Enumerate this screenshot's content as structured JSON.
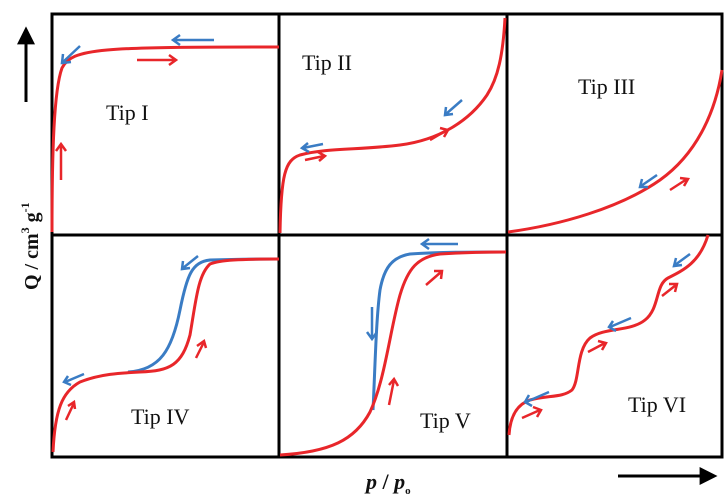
{
  "panels": [
    {
      "id": "tip1",
      "label": "Tip I"
    },
    {
      "id": "tip2",
      "label": "Tip II"
    },
    {
      "id": "tip3",
      "label": "Tip III"
    },
    {
      "id": "tip4",
      "label": "Tip IV"
    },
    {
      "id": "tip5",
      "label": "Tip V"
    },
    {
      "id": "tip6",
      "label": "Tip VI"
    }
  ],
  "axes": {
    "y_label_main": "Q / cm",
    "y_label_sup1": "3",
    "y_label_g": " g",
    "y_label_sup2": "-1",
    "x_label_p": "p",
    "x_label_slash": " / ",
    "x_label_p2": "p",
    "x_label_sub": "o"
  },
  "colors": {
    "adsorption": "#e8262a",
    "desorption": "#3a7cc4",
    "frame": "#000000"
  }
}
